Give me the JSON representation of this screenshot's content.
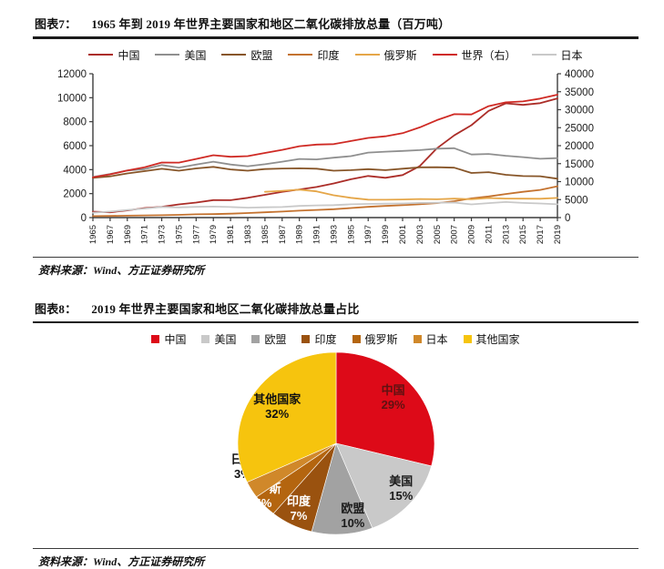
{
  "page": {
    "figure7": {
      "label": "图表7：",
      "title": "1965 年到 2019 年世界主要国家和地区二氧化碳排放总量（百万吨）",
      "source": "资料来源：Wind、方正证券研究所"
    },
    "figure8": {
      "label": "图表8：",
      "title": "2019 年世界主要国家和地区二氧化碳排放总量占比",
      "source": "资料来源：Wind、方正证券研究所"
    }
  },
  "chart_data": [
    {
      "type": "line",
      "title": "1965 年到 2019 年世界主要国家和地区二氧化碳排放总量（百万吨）",
      "unit": "百万吨",
      "grid": false,
      "legend_position": "top",
      "x": [
        1965,
        1967,
        1969,
        1971,
        1973,
        1975,
        1977,
        1979,
        1981,
        1983,
        1985,
        1987,
        1989,
        1991,
        1993,
        1995,
        1997,
        1999,
        2001,
        2003,
        2005,
        2007,
        2009,
        2011,
        2013,
        2015,
        2017,
        2019
      ],
      "left_axis": {
        "min": 0,
        "max": 12000,
        "step": 2000
      },
      "right_axis": {
        "min": 0,
        "max": 40000,
        "step": 5000
      },
      "series": [
        {
          "name": "中国",
          "axis": "left",
          "color": "#ab2d28",
          "values": [
            490,
            440,
            600,
            800,
            900,
            1100,
            1250,
            1460,
            1450,
            1650,
            1900,
            2150,
            2350,
            2550,
            2850,
            3200,
            3470,
            3320,
            3550,
            4300,
            5790,
            6860,
            7710,
            8900,
            9530,
            9400,
            9550,
            9940
          ]
        },
        {
          "name": "美国",
          "axis": "left",
          "color": "#8f8f8f",
          "values": [
            3390,
            3640,
            3930,
            4040,
            4380,
            4170,
            4430,
            4660,
            4430,
            4280,
            4450,
            4660,
            4890,
            4850,
            5000,
            5130,
            5420,
            5500,
            5560,
            5630,
            5750,
            5790,
            5260,
            5310,
            5160,
            5040,
            4910,
            4960
          ]
        },
        {
          "name": "欧盟",
          "axis": "left",
          "color": "#875528",
          "values": [
            3310,
            3440,
            3680,
            3870,
            4070,
            3910,
            4100,
            4230,
            4020,
            3910,
            4050,
            4090,
            4110,
            4080,
            3910,
            3960,
            4040,
            3960,
            4080,
            4190,
            4200,
            4160,
            3720,
            3790,
            3570,
            3460,
            3450,
            3240
          ]
        },
        {
          "name": "印度",
          "axis": "left",
          "color": "#c4722f",
          "values": [
            120,
            140,
            160,
            180,
            200,
            230,
            270,
            290,
            330,
            380,
            440,
            500,
            580,
            640,
            700,
            800,
            900,
            970,
            1030,
            1120,
            1210,
            1370,
            1600,
            1760,
            1970,
            2150,
            2310,
            2610
          ]
        },
        {
          "name": "俄罗斯",
          "axis": "left",
          "color": "#e5a648",
          "values": [
            null,
            null,
            null,
            null,
            null,
            null,
            null,
            null,
            null,
            null,
            2150,
            2230,
            2330,
            2190,
            1860,
            1650,
            1500,
            1490,
            1510,
            1550,
            1530,
            1580,
            1530,
            1630,
            1590,
            1580,
            1570,
            1640
          ]
        },
        {
          "name": "世界（右）",
          "axis": "right",
          "color": "#cf2a24",
          "values": [
            11190,
            12030,
            13100,
            14000,
            15320,
            15290,
            16310,
            17330,
            16920,
            17080,
            17970,
            18830,
            19860,
            20300,
            20440,
            21280,
            22150,
            22600,
            23480,
            25080,
            27120,
            28750,
            28680,
            30990,
            32060,
            32300,
            33100,
            34170
          ]
        },
        {
          "name": "日本",
          "axis": "left",
          "color": "#c9c9c9",
          "values": [
            400,
            500,
            640,
            750,
            890,
            850,
            900,
            920,
            880,
            830,
            860,
            880,
            970,
            1020,
            1040,
            1110,
            1140,
            1160,
            1180,
            1220,
            1240,
            1250,
            1100,
            1210,
            1300,
            1220,
            1180,
            1110
          ]
        }
      ]
    },
    {
      "type": "pie",
      "title": "2019 年世界主要国家和地区二氧化碳排放总量占比",
      "legend_position": "top",
      "start_angle": "top-clockwise",
      "segments": [
        {
          "label": "中国",
          "pct": 29,
          "color": "#dd0a18",
          "text_color": "#5f1212",
          "label_pos": [
            0.58,
            -0.5
          ]
        },
        {
          "label": "美国",
          "pct": 15,
          "color": "#c9c9c9",
          "text_color": "#1a1a1a",
          "label_pos": [
            0.66,
            0.5
          ]
        },
        {
          "label": "欧盟",
          "pct": 10,
          "color": "#a2a2a2",
          "text_color": "#1a1a1a",
          "label_pos": [
            0.17,
            0.8
          ]
        },
        {
          "label": "印度",
          "pct": 7,
          "color": "#9a520f",
          "text_color": "#ffffff",
          "label_pos": [
            -0.38,
            0.72
          ]
        },
        {
          "label": "俄罗斯",
          "pct": 4,
          "color": "#b4650f",
          "text_color": "#ffffff",
          "label_pos": [
            -0.74,
            0.58
          ]
        },
        {
          "label": "日本",
          "pct": 3,
          "color": "#d0882a",
          "text_color": "#111111",
          "label_pos": [
            -0.95,
            0.26
          ]
        },
        {
          "label": "其他国家",
          "pct": 32,
          "color": "#f6c40e",
          "text_color": "#111111",
          "label_pos": [
            -0.6,
            -0.4
          ]
        }
      ]
    }
  ]
}
